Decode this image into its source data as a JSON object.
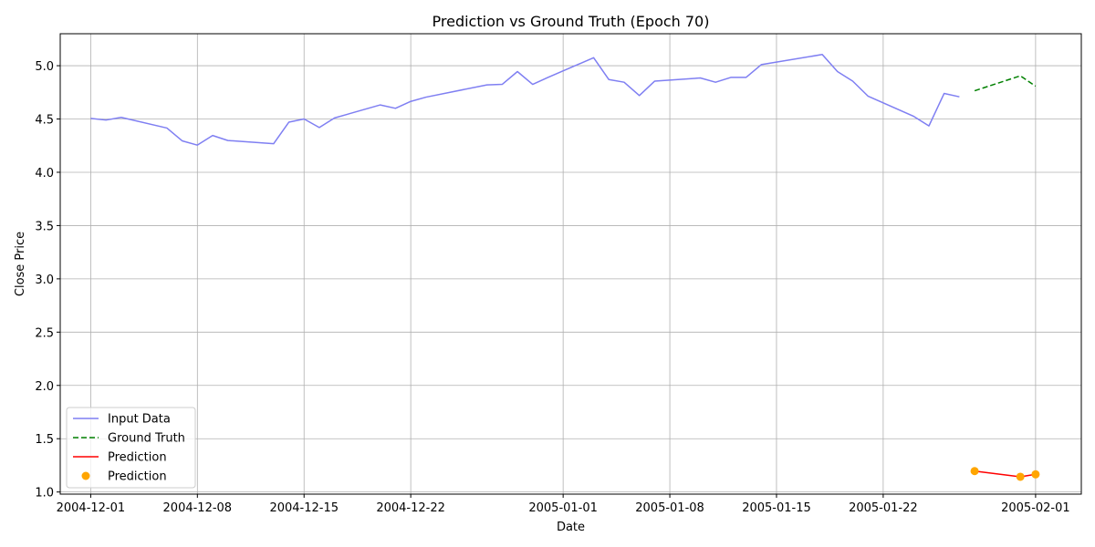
{
  "chart_data": {
    "type": "line",
    "title": "Prediction vs Ground Truth (Epoch 70)",
    "xlabel": "Date",
    "ylabel": "Close Price",
    "grid": true,
    "legend_placement": "lower-left",
    "xlim": [
      "2004-11-29",
      "2005-02-04"
    ],
    "ylim": [
      0.98,
      5.3
    ],
    "x_ticks": [
      "2004-12-01",
      "2004-12-08",
      "2004-12-15",
      "2004-12-22",
      "2005-01-01",
      "2005-01-08",
      "2005-01-15",
      "2005-01-22",
      "2005-02-01"
    ],
    "y_ticks": [
      1.0,
      1.5,
      2.0,
      2.5,
      3.0,
      3.5,
      4.0,
      4.5,
      5.0
    ],
    "y_tick_labels": [
      "1.0",
      "1.5",
      "2.0",
      "2.5",
      "3.0",
      "3.5",
      "4.0",
      "4.5",
      "5.0"
    ],
    "series": [
      {
        "name": "Input Data",
        "style": "line",
        "color": "#7f7ff2",
        "dash": "solid",
        "x": [
          "2004-12-01",
          "2004-12-02",
          "2004-12-03",
          "2004-12-06",
          "2004-12-07",
          "2004-12-08",
          "2004-12-09",
          "2004-12-10",
          "2004-12-13",
          "2004-12-14",
          "2004-12-15",
          "2004-12-16",
          "2004-12-17",
          "2004-12-20",
          "2004-12-21",
          "2004-12-22",
          "2004-12-23",
          "2004-12-27",
          "2004-12-28",
          "2004-12-29",
          "2004-12-30",
          "2004-12-31",
          "2005-01-03",
          "2005-01-04",
          "2005-01-05",
          "2005-01-06",
          "2005-01-07",
          "2005-01-10",
          "2005-01-11",
          "2005-01-12",
          "2005-01-13",
          "2005-01-14",
          "2005-01-18",
          "2005-01-19",
          "2005-01-20",
          "2005-01-21",
          "2005-01-24",
          "2005-01-25",
          "2005-01-26",
          "2005-01-27"
        ],
        "y": [
          4.505,
          4.49,
          4.515,
          4.415,
          4.295,
          4.255,
          4.345,
          4.298,
          4.268,
          4.47,
          4.5,
          4.42,
          4.51,
          4.632,
          4.6,
          4.665,
          4.705,
          4.82,
          4.825,
          4.945,
          4.825,
          4.89,
          5.075,
          4.87,
          4.845,
          4.72,
          4.855,
          4.885,
          4.845,
          4.89,
          4.89,
          5.01,
          5.105,
          4.945,
          4.855,
          4.715,
          4.525,
          4.435,
          4.74,
          4.708
        ]
      },
      {
        "name": "Ground Truth",
        "style": "line",
        "color": "#008000",
        "dash": "dashed",
        "x": [
          "2005-01-28",
          "2005-01-31",
          "2005-02-01"
        ],
        "y": [
          4.765,
          4.905,
          4.808
        ]
      },
      {
        "name": "Prediction",
        "style": "line",
        "color": "#ff0000",
        "dash": "solid",
        "x": [
          "2005-01-28",
          "2005-01-31",
          "2005-02-01"
        ],
        "y": [
          1.196,
          1.143,
          1.166
        ]
      },
      {
        "name": "Prediction",
        "style": "scatter",
        "color": "#ffa500",
        "x": [
          "2005-01-28",
          "2005-01-31",
          "2005-02-01"
        ],
        "y": [
          1.196,
          1.143,
          1.166
        ]
      }
    ]
  }
}
